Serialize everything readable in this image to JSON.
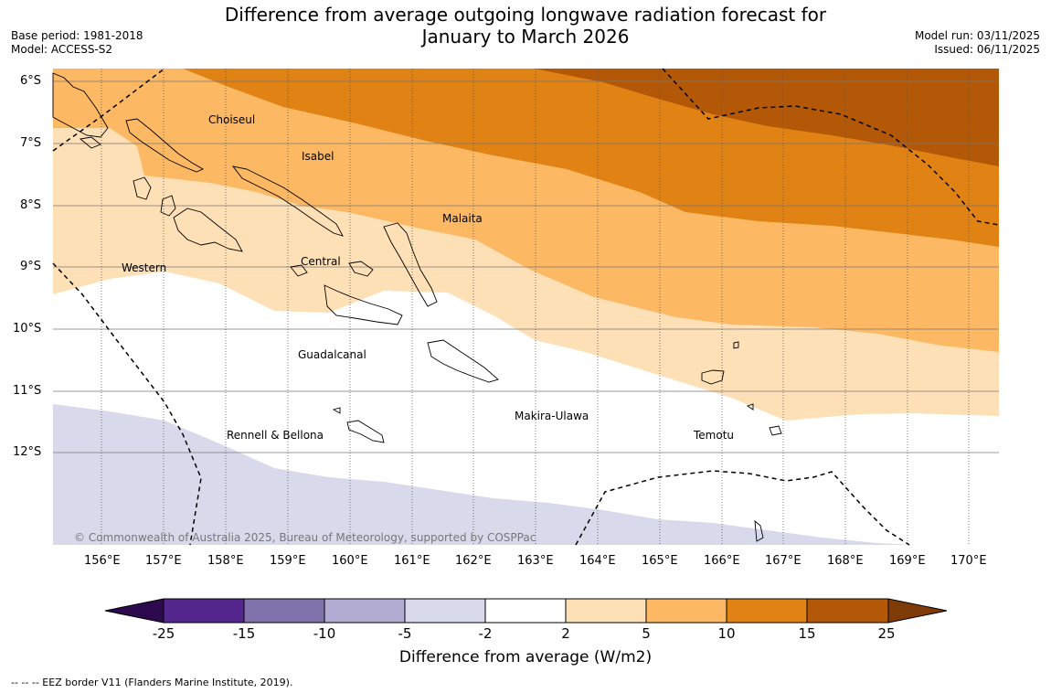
{
  "title_line1": "Difference from average outgoing longwave radiation forecast for",
  "title_line2": "January to March 2026",
  "base_period": "Base period: 1981-2018",
  "model": "Model: ACCESS-S2",
  "model_run": "Model run: 03/11/2025",
  "issued": "Issued: 06/11/2025",
  "copyright": "© Commonwealth of Australia 2025, Bureau of Meteorology, supported by COSPPac",
  "footnote": "--  --  -- EEZ border V11 (Flanders Marine Institute, 2019).",
  "lat_labels": [
    "6°S",
    "7°S",
    "8°S",
    "9°S",
    "10°S",
    "11°S",
    "12°S"
  ],
  "lon_labels": [
    "156°E",
    "157°E",
    "158°E",
    "159°E",
    "160°E",
    "161°E",
    "162°E",
    "163°E",
    "164°E",
    "165°E",
    "166°E",
    "167°E",
    "168°E",
    "169°E",
    "170°E"
  ],
  "places": {
    "choiseul": "Choiseul",
    "isabel": "Isabel",
    "malaita": "Malaita",
    "western": "Western",
    "central": "Central",
    "guadalcanal": "Guadalcanal",
    "makira": "Makira-Ulawa",
    "rennell": "Rennell & Bellona",
    "temotu": "Temotu"
  },
  "colorbar": {
    "title": "Difference from average (W/m2)",
    "labels": [
      "-25",
      "-15",
      "-10",
      "-5",
      "-2",
      "2",
      "5",
      "10",
      "15",
      "25"
    ],
    "colors": {
      "below_min": "#2d0a4e",
      "c1": "#54278f",
      "c2": "#8073ac",
      "c3": "#b2abd2",
      "c4": "#d8daeb",
      "c5": "#ffffff",
      "c6": "#fee0b6",
      "c7": "#fdb863",
      "c8": "#e08214",
      "c9": "#b35806",
      "above_max": "#7f3b08"
    }
  }
}
